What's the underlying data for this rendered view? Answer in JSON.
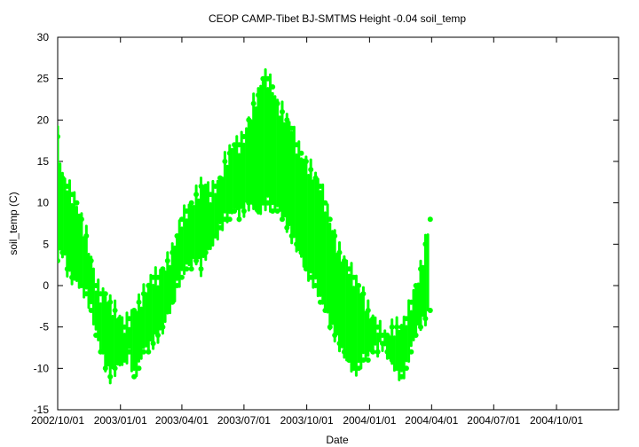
{
  "chart_data": {
    "type": "scatter",
    "title": "CEOP CAMP-Tibet BJ-SMTMS Height -0.04 soil_temp",
    "xlabel": "Date",
    "ylabel": "soil_temp (C)",
    "xlim": [
      "2002-10-01",
      "2004-12-31"
    ],
    "ylim": [
      -15,
      30
    ],
    "x_ticks": [
      "2002/10/01",
      "2003/01/01",
      "2003/04/01",
      "2003/07/01",
      "2003/10/01",
      "2004/01/01",
      "2004/04/01",
      "2004/07/01",
      "2004/10/01"
    ],
    "y_ticks": [
      -15,
      -10,
      -5,
      0,
      5,
      10,
      15,
      20,
      25,
      30
    ],
    "grid": false,
    "legend": "none",
    "series": [
      {
        "color": "#00ff00",
        "x": [
          "2002-10-01",
          "2002-10-08",
          "2002-10-15",
          "2002-10-22",
          "2002-10-29",
          "2002-11-05",
          "2002-11-12",
          "2002-11-19",
          "2002-11-26",
          "2002-12-03",
          "2002-12-10",
          "2002-12-17",
          "2002-12-24",
          "2002-12-31",
          "2003-01-07",
          "2003-01-14",
          "2003-01-21",
          "2003-01-28",
          "2003-02-04",
          "2003-02-11",
          "2003-02-18",
          "2003-02-25",
          "2003-03-04",
          "2003-03-11",
          "2003-03-18",
          "2003-03-25",
          "2003-04-01",
          "2003-04-08",
          "2003-04-15",
          "2003-04-22",
          "2003-04-29",
          "2003-05-06",
          "2003-05-13",
          "2003-05-20",
          "2003-05-27",
          "2003-06-03",
          "2003-06-10",
          "2003-06-17",
          "2003-06-24",
          "2003-07-01",
          "2003-07-08",
          "2003-07-15",
          "2003-07-22",
          "2003-07-29",
          "2003-08-05",
          "2003-08-12",
          "2003-08-19",
          "2003-08-26",
          "2003-09-02",
          "2003-09-09",
          "2003-09-16",
          "2003-09-23",
          "2003-09-30",
          "2003-10-07",
          "2003-10-14",
          "2003-10-21",
          "2003-10-28",
          "2003-11-04",
          "2003-11-11",
          "2003-11-18",
          "2003-11-25",
          "2003-12-02",
          "2003-12-09",
          "2003-12-16",
          "2003-12-23",
          "2003-12-30",
          "2004-01-06",
          "2004-01-13",
          "2004-01-20",
          "2004-01-27",
          "2004-02-03",
          "2004-02-10",
          "2004-02-17",
          "2004-02-24",
          "2004-03-02",
          "2004-03-09",
          "2004-03-16",
          "2004-03-23",
          "2004-03-30"
        ],
        "low": [
          3,
          4,
          2,
          1,
          1,
          0,
          -1,
          -3,
          -6,
          -8,
          -10,
          -11,
          -10,
          -9,
          -9,
          -8,
          -11,
          -10,
          -8,
          -8,
          -7,
          -6,
          -5,
          -3,
          -2,
          0,
          1,
          2,
          2,
          3,
          2,
          4,
          5,
          6,
          7,
          8,
          8,
          9,
          8,
          9,
          10,
          10,
          9,
          10,
          10,
          9,
          9,
          8,
          7,
          6,
          5,
          4,
          2,
          1,
          0,
          -2,
          -3,
          -5,
          -6,
          -7,
          -8,
          -9,
          -10,
          -10,
          -9,
          -9,
          -8,
          -8,
          -7,
          -8,
          -9,
          -10,
          -11,
          -10,
          -8,
          -6,
          -5,
          -4,
          -3
        ],
        "high": [
          18,
          13,
          12,
          11,
          10,
          8,
          6,
          3,
          0,
          -1,
          -1,
          -2,
          -3,
          -4,
          -5,
          -4,
          -3,
          -2,
          -1,
          0,
          1,
          1,
          2,
          3,
          4,
          6,
          8,
          9,
          10,
          11,
          12,
          12,
          11,
          12,
          13,
          15,
          16,
          17,
          17,
          18,
          20,
          22,
          23,
          25,
          25,
          24,
          22,
          21,
          20,
          19,
          17,
          16,
          15,
          14,
          13,
          12,
          10,
          8,
          6,
          4,
          3,
          2,
          1,
          0,
          -1,
          -3,
          -4,
          -5,
          -6,
          -6,
          -5,
          -5,
          -5,
          -4,
          -2,
          0,
          2,
          5,
          8
        ]
      }
    ]
  }
}
